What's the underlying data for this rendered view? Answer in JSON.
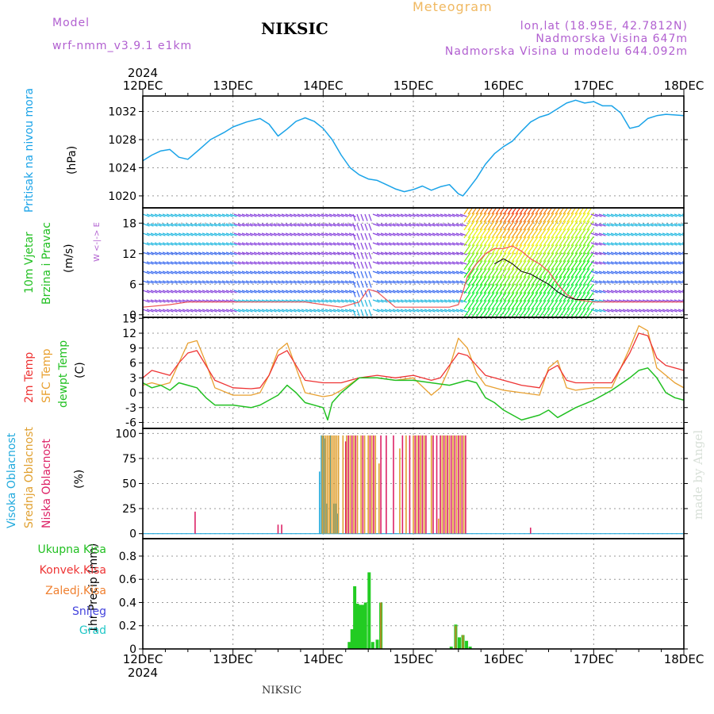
{
  "header": {
    "model_label": "Model",
    "model_name": "wrf-nmm_v3.9.1 e1km",
    "title": "NIKSIC",
    "meteogram": "Meteogram",
    "coords": "lon,lat (18.95E, 42.7812N)",
    "altitude": "Nadmorska Visina 647m",
    "model_altitude": "Nadmorska Visina u modelu 644.092m"
  },
  "footer": {
    "station": "NIKSIC",
    "credit": "made by Angel"
  },
  "colors": {
    "pressure": "#1aa3e8",
    "t2m": "#ee3333",
    "sfc": "#e8a030",
    "dewpt": "#22c022",
    "high": "#22aadd",
    "mid": "#e0a030",
    "low": "#dd2266",
    "purple": "#b15fd0",
    "precip": "#22cc22"
  },
  "panels": {
    "pressure": {
      "label": "Pritisak na nivou mora",
      "unit": "(hPa)"
    },
    "wind": {
      "label1": "10m Vjetar",
      "label2": "Brzina i Pravac",
      "unit": "(m/s)",
      "compass": "W <-|-> E"
    },
    "temp": {
      "label1": "2m Temp",
      "label2": "SFC Temp",
      "label3": "dewpt Temp",
      "unit": "(C)"
    },
    "cloud": {
      "label1": "Visoka Oblacnost",
      "label2": "Srednja Oblacnost",
      "label3": "Niska Oblacnost",
      "unit": "(%)"
    },
    "precip": {
      "unit": "1hr Precip (mm)",
      "legend": [
        "Ukupna Kisa",
        "Konvek.Kisa",
        "Zaledj.Kisa",
        "Snijeg",
        "Grad"
      ]
    }
  },
  "chart_data": [
    {
      "type": "line",
      "title": "Pritisak na nivou mora",
      "ylabel": "(hPa)",
      "year": "2024",
      "x_ticks": [
        "12DEC",
        "13DEC",
        "14DEC",
        "15DEC",
        "16DEC",
        "17DEC",
        "18DEC"
      ],
      "ylim": [
        1018.3,
        1034.2
      ],
      "y_ticks": [
        1020,
        1024,
        1028,
        1032
      ],
      "grid": true,
      "series": [
        {
          "name": "Pritisak na nivou mora",
          "x": [
            0,
            0.1,
            0.2,
            0.3,
            0.4,
            0.5,
            0.6,
            0.75,
            0.9,
            1.0,
            1.15,
            1.3,
            1.4,
            1.5,
            1.6,
            1.7,
            1.8,
            1.9,
            2.0,
            2.1,
            2.2,
            2.3,
            2.4,
            2.5,
            2.6,
            2.7,
            2.8,
            2.9,
            3.0,
            3.1,
            3.2,
            3.3,
            3.4,
            3.5,
            3.55,
            3.6,
            3.7,
            3.8,
            3.9,
            4.0,
            4.1,
            4.2,
            4.3,
            4.4,
            4.5,
            4.6,
            4.7,
            4.8,
            4.9,
            5.0,
            5.1,
            5.2,
            5.3,
            5.4,
            5.5,
            5.6,
            5.7,
            5.8,
            5.9,
            6.0
          ],
          "y": [
            1025.0,
            1025.8,
            1026.4,
            1026.6,
            1025.5,
            1025.2,
            1026.3,
            1028.0,
            1029.0,
            1029.8,
            1030.5,
            1031.0,
            1030.2,
            1028.5,
            1029.5,
            1030.6,
            1031.1,
            1030.6,
            1029.6,
            1028.0,
            1025.8,
            1024.0,
            1023.0,
            1022.4,
            1022.2,
            1021.6,
            1021.0,
            1020.6,
            1020.9,
            1021.4,
            1020.8,
            1021.3,
            1021.6,
            1020.3,
            1020.0,
            1020.8,
            1022.5,
            1024.5,
            1026.0,
            1027.0,
            1027.8,
            1029.2,
            1030.5,
            1031.2,
            1031.6,
            1032.4,
            1033.2,
            1033.6,
            1033.2,
            1033.4,
            1032.8,
            1032.8,
            1031.8,
            1029.6,
            1029.9,
            1031.0,
            1031.4,
            1031.6,
            1031.5,
            1031.4
          ]
        }
      ]
    },
    {
      "type": "line",
      "title": "10m Vjetar Brzina i Pravac",
      "ylabel": "(m/s)",
      "x_ticks": [
        "12DEC",
        "13DEC",
        "14DEC",
        "15DEC",
        "16DEC",
        "17DEC",
        "18DEC"
      ],
      "ylim": [
        -0.5,
        21
      ],
      "y_ticks": [
        0,
        6,
        12,
        18
      ],
      "grid": true,
      "series": [
        {
          "name": "10m Vjetar",
          "x": [
            0,
            0.3,
            0.5,
            0.8,
            1.0,
            1.3,
            1.5,
            1.8,
            2.0,
            2.2,
            2.4,
            2.5,
            2.6,
            2.8,
            3.0,
            3.2,
            3.4,
            3.5,
            3.55,
            3.6,
            3.7,
            3.8,
            3.9,
            4.0,
            4.1,
            4.2,
            4.3,
            4.4,
            4.5,
            4.6,
            4.7,
            4.8,
            5.0,
            5.2,
            5.4,
            5.6,
            5.8,
            6.0
          ],
          "y": [
            1.5,
            2.0,
            2.5,
            2.5,
            2.5,
            2.5,
            2.5,
            2.5,
            2.0,
            1.5,
            2.5,
            5.0,
            4.5,
            1.5,
            1.5,
            1.5,
            1.5,
            2.0,
            4.5,
            7.5,
            10.0,
            12.0,
            13.0,
            13.0,
            13.5,
            12.5,
            11.0,
            10.0,
            8.5,
            6.0,
            4.0,
            3.0,
            2.5,
            2.5,
            2.5,
            2.5,
            2.5,
            2.5
          ]
        },
        {
          "name": "wind-dark",
          "x": [
            3.9,
            4.0,
            4.1,
            4.2,
            4.3,
            4.4,
            4.5,
            4.6,
            4.7,
            4.8,
            4.9,
            5.0
          ],
          "y": [
            10.0,
            11.0,
            10.0,
            8.5,
            8.0,
            7.0,
            6.0,
            4.5,
            3.5,
            3.0,
            3.0,
            3.0
          ]
        }
      ]
    },
    {
      "type": "line",
      "title": "2m Temp / SFC Temp / dewpt Temp",
      "ylabel": "(C)",
      "x_ticks": [
        "12DEC",
        "13DEC",
        "14DEC",
        "15DEC",
        "16DEC",
        "17DEC",
        "18DEC"
      ],
      "ylim": [
        -7.2,
        15.2
      ],
      "y_ticks": [
        -6,
        -3,
        0,
        3,
        6,
        9,
        12,
        15
      ],
      "grid": true,
      "series": [
        {
          "name": "2m Temp",
          "x": [
            0,
            0.1,
            0.2,
            0.3,
            0.4,
            0.5,
            0.6,
            0.7,
            0.8,
            1.0,
            1.2,
            1.3,
            1.4,
            1.5,
            1.6,
            1.7,
            1.8,
            2.0,
            2.2,
            2.4,
            2.6,
            2.8,
            3.0,
            3.2,
            3.3,
            3.4,
            3.5,
            3.6,
            3.7,
            3.8,
            4.0,
            4.2,
            4.4,
            4.5,
            4.6,
            4.7,
            4.8,
            5.0,
            5.2,
            5.4,
            5.5,
            5.6,
            5.7,
            5.8,
            5.9,
            6.0
          ],
          "y": [
            3.0,
            4.5,
            4.0,
            3.5,
            6.0,
            8.0,
            8.5,
            5.5,
            2.5,
            1.0,
            0.8,
            1.0,
            3.5,
            7.5,
            8.5,
            5.5,
            2.5,
            2.0,
            2.0,
            3.0,
            3.5,
            3.0,
            3.5,
            2.5,
            3.0,
            5.5,
            8.0,
            7.5,
            5.5,
            3.5,
            2.5,
            1.5,
            1.0,
            4.5,
            5.5,
            2.5,
            2.0,
            2.0,
            2.0,
            8.0,
            12.0,
            11.5,
            7.0,
            5.5,
            5.0,
            4.5
          ]
        },
        {
          "name": "SFC Temp",
          "x": [
            0,
            0.1,
            0.2,
            0.3,
            0.4,
            0.5,
            0.6,
            0.7,
            0.8,
            1.0,
            1.2,
            1.3,
            1.4,
            1.5,
            1.6,
            1.7,
            1.8,
            2.0,
            2.1,
            2.2,
            2.4,
            2.6,
            2.8,
            3.0,
            3.2,
            3.3,
            3.4,
            3.5,
            3.6,
            3.7,
            3.8,
            4.0,
            4.2,
            4.4,
            4.5,
            4.6,
            4.7,
            4.8,
            5.0,
            5.2,
            5.4,
            5.5,
            5.6,
            5.7,
            5.8,
            5.9,
            6.0
          ],
          "y": [
            1.5,
            2.0,
            1.5,
            2.0,
            6.0,
            10.0,
            10.5,
            6.0,
            1.0,
            -0.5,
            -0.5,
            0.0,
            3.5,
            8.5,
            10.0,
            5.0,
            0.0,
            -0.8,
            -0.5,
            0.5,
            3.0,
            3.0,
            2.5,
            3.0,
            -0.5,
            1.0,
            5.0,
            11.0,
            9.0,
            4.0,
            1.5,
            0.5,
            0.0,
            -0.5,
            5.0,
            6.5,
            1.0,
            0.5,
            1.0,
            1.0,
            9.0,
            13.5,
            12.5,
            5.0,
            3.5,
            2.0,
            1.0
          ]
        },
        {
          "name": "dewpt Temp",
          "x": [
            0,
            0.1,
            0.2,
            0.3,
            0.4,
            0.5,
            0.6,
            0.7,
            0.8,
            1.0,
            1.2,
            1.3,
            1.4,
            1.5,
            1.6,
            1.7,
            1.8,
            2.0,
            2.05,
            2.1,
            2.2,
            2.4,
            2.6,
            2.8,
            3.0,
            3.2,
            3.4,
            3.5,
            3.6,
            3.7,
            3.8,
            3.9,
            4.0,
            4.2,
            4.4,
            4.5,
            4.6,
            4.8,
            5.0,
            5.2,
            5.4,
            5.5,
            5.6,
            5.7,
            5.8,
            5.9,
            6.0
          ],
          "y": [
            2.0,
            1.0,
            1.5,
            0.5,
            2.0,
            1.5,
            1.0,
            -1.0,
            -2.5,
            -2.5,
            -3.0,
            -2.5,
            -1.5,
            -0.5,
            1.5,
            0.0,
            -2.0,
            -3.0,
            -5.5,
            -2.0,
            0.0,
            3.0,
            3.0,
            2.5,
            2.5,
            2.0,
            1.5,
            2.0,
            2.5,
            2.0,
            -1.0,
            -2.0,
            -3.5,
            -5.5,
            -4.5,
            -3.5,
            -5.0,
            -3.0,
            -1.5,
            0.5,
            3.0,
            4.5,
            5.0,
            3.0,
            0.0,
            -1.0,
            -1.5
          ]
        }
      ]
    },
    {
      "type": "bar",
      "title": "Visoka / Srednja / Niska Oblacnost",
      "ylabel": "(%)",
      "x_ticks": [
        "12DEC",
        "13DEC",
        "14DEC",
        "15DEC",
        "16DEC",
        "17DEC",
        "18DEC"
      ],
      "ylim": [
        -5,
        105
      ],
      "y_ticks": [
        0,
        25,
        50,
        75,
        100
      ],
      "grid": true,
      "series": [
        {
          "name": "Visoka Oblacnost",
          "x": [
            1.96,
            1.98,
            2.0,
            2.02,
            2.04,
            2.08,
            2.12,
            2.14,
            2.16
          ],
          "values": [
            62,
            98,
            98,
            95,
            30,
            98,
            30,
            30,
            20
          ]
        },
        {
          "name": "Srednja Oblacnost",
          "x": [
            1.99,
            2.01,
            2.03,
            2.05,
            2.07,
            2.09,
            2.11,
            2.13,
            2.15,
            2.17,
            2.22,
            2.26,
            2.3,
            2.34,
            2.38,
            2.42,
            2.46,
            2.5,
            2.54,
            2.58,
            2.62,
            2.85,
            2.92,
            3.0,
            3.04,
            3.08,
            3.12,
            3.2,
            3.28,
            3.32,
            3.36,
            3.4,
            3.44,
            3.48,
            3.52,
            3.56
          ],
          "values": [
            98,
            98,
            98,
            98,
            98,
            98,
            98,
            98,
            98,
            98,
            98,
            98,
            98,
            98,
            98,
            98,
            98,
            98,
            98,
            98,
            70,
            85,
            98,
            98,
            98,
            98,
            98,
            98,
            15,
            98,
            98,
            98,
            98,
            98,
            98,
            98
          ]
        },
        {
          "name": "Niska Oblacnost",
          "x": [
            0.58,
            1.5,
            1.54,
            2.25,
            2.28,
            2.32,
            2.36,
            2.44,
            2.52,
            2.56,
            2.64,
            2.7,
            2.78,
            2.88,
            2.96,
            3.02,
            3.06,
            3.1,
            3.14,
            3.22,
            3.26,
            3.3,
            3.34,
            3.38,
            3.42,
            3.46,
            3.5,
            3.54,
            3.58,
            4.3
          ],
          "values": [
            22,
            9,
            9,
            92,
            98,
            98,
            98,
            98,
            98,
            98,
            98,
            98,
            98,
            98,
            98,
            98,
            98,
            98,
            98,
            98,
            98,
            98,
            98,
            98,
            98,
            98,
            98,
            98,
            98,
            6
          ]
        }
      ]
    },
    {
      "type": "bar",
      "title": "1hr Precip",
      "ylabel": "1hr Precip (mm)",
      "x_ticks": [
        "12DEC",
        "13DEC",
        "14DEC",
        "15DEC",
        "16DEC",
        "17DEC",
        "18DEC"
      ],
      "ylim": [
        0,
        0.95
      ],
      "y_ticks": [
        0,
        0.2,
        0.4,
        0.6,
        0.8
      ],
      "grid": true,
      "series": [
        {
          "name": "Ukupna Kisa",
          "x": [
            2.29,
            2.32,
            2.35,
            2.38,
            2.41,
            2.44,
            2.47,
            2.51,
            2.55,
            2.6,
            2.64,
            3.42,
            3.47,
            3.51,
            3.55,
            3.59,
            3.63
          ],
          "values": [
            0.06,
            0.17,
            0.54,
            0.39,
            0.38,
            0.38,
            0.4,
            0.66,
            0.06,
            0.08,
            0.4,
            0.02,
            0.21,
            0.1,
            0.12,
            0.07,
            0.02
          ]
        },
        {
          "name": "Konvek.Kisa",
          "x": [
            2.64,
            3.47,
            3.55
          ],
          "values": [
            0.4,
            0.2,
            0.12
          ]
        }
      ]
    }
  ]
}
